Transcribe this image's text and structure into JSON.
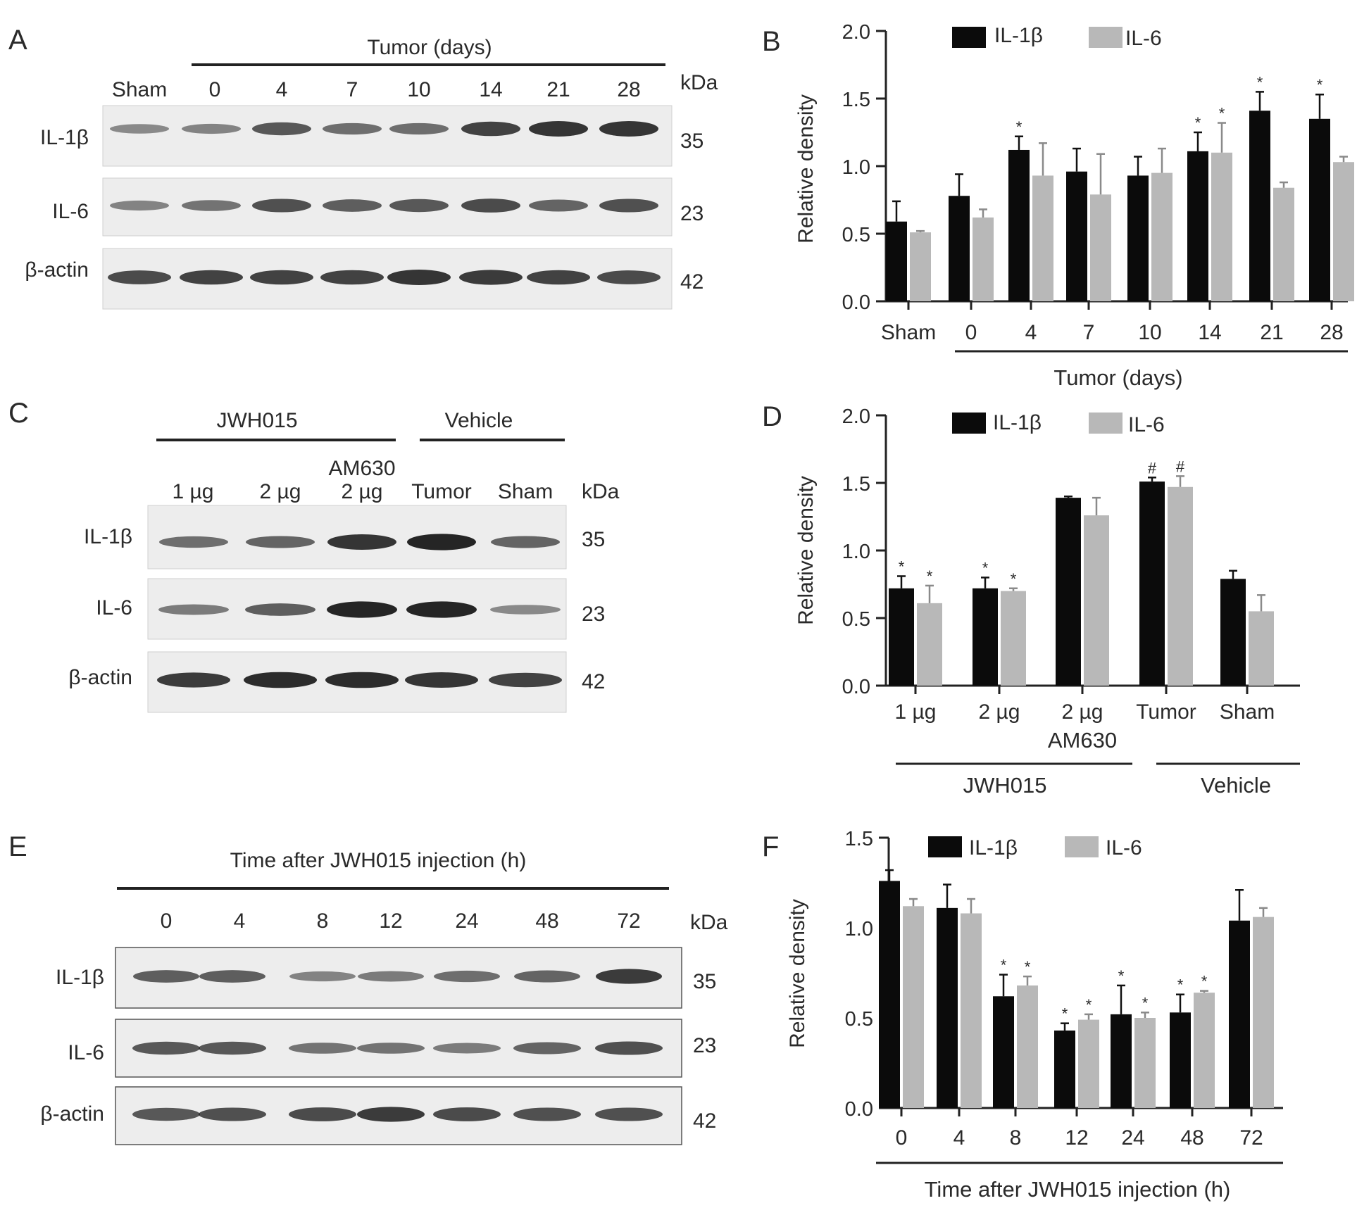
{
  "panel_letters": [
    "A",
    "B",
    "C",
    "D",
    "E",
    "F"
  ],
  "colors": {
    "il1b": "#0b0b0b",
    "il6": "#b8b8b8",
    "blot_bg": "#ededed",
    "band": "#141414"
  },
  "blots": {
    "A": {
      "header": "Tumor (days)",
      "lanes": [
        "Sham",
        "0",
        "4",
        "7",
        "10",
        "14",
        "21",
        "28"
      ],
      "kda_label": "kDa",
      "rows": [
        {
          "protein": "IL-1β",
          "kda": "35"
        },
        {
          "protein": "IL-6",
          "kda": "23"
        },
        {
          "protein": "β-actin",
          "kda": "42"
        }
      ]
    },
    "C": {
      "groups": [
        "JWH015",
        "Vehicle"
      ],
      "lane_top_extra": "AM630",
      "lanes": [
        "1 µg",
        "2 µg",
        "2 µg",
        "Tumor",
        "Sham"
      ],
      "kda_label": "kDa",
      "rows": [
        {
          "protein": "IL-1β",
          "kda": "35"
        },
        {
          "protein": "IL-6",
          "kda": "23"
        },
        {
          "protein": "β-actin",
          "kda": "42"
        }
      ]
    },
    "E": {
      "header": "Time after JWH015 injection (h)",
      "lanes": [
        "0",
        "4",
        "8",
        "12",
        "24",
        "48",
        "72"
      ],
      "kda_label": "kDa",
      "rows": [
        {
          "protein": "IL-1β",
          "kda": "35"
        },
        {
          "protein": "IL-6",
          "kda": "23"
        },
        {
          "protein": "β-actin",
          "kda": "42"
        }
      ]
    }
  },
  "chart_data": [
    {
      "panel": "B",
      "type": "bar",
      "ylabel": "Relative density",
      "ylim": [
        0,
        2.0
      ],
      "yticks": [
        "0.0",
        "0.5",
        "1.0",
        "1.5",
        "2.0"
      ],
      "categories": [
        "Sham",
        "0",
        "4",
        "7",
        "10",
        "14",
        "21",
        "28"
      ],
      "group_label": "Tumor (days)",
      "legend": "top",
      "series": [
        {
          "name": "IL-1β",
          "values": [
            0.59,
            0.78,
            1.12,
            0.96,
            0.93,
            1.11,
            1.41,
            1.35
          ],
          "errors": [
            0.15,
            0.16,
            0.1,
            0.17,
            0.14,
            0.14,
            0.14,
            0.18
          ],
          "marks": [
            "",
            "",
            "*",
            "",
            "",
            "*",
            "*",
            "*"
          ]
        },
        {
          "name": "IL-6",
          "values": [
            0.51,
            0.62,
            0.93,
            0.79,
            0.95,
            1.1,
            0.84,
            1.03
          ],
          "errors": [
            0.01,
            0.06,
            0.24,
            0.3,
            0.18,
            0.22,
            0.04,
            0.04
          ],
          "marks": [
            "",
            "",
            "",
            "",
            "",
            "*",
            "",
            ""
          ]
        }
      ]
    },
    {
      "panel": "D",
      "type": "bar",
      "ylabel": "Relative density",
      "ylim": [
        0,
        2.0
      ],
      "yticks": [
        "0.0",
        "0.5",
        "1.0",
        "1.5",
        "2.0"
      ],
      "categories": [
        "1 µg",
        "2 µg",
        "2 µg",
        "Tumor",
        "Sham"
      ],
      "category_sublabel": "AM630",
      "groups": [
        "JWH015",
        "Vehicle"
      ],
      "legend": "top",
      "series": [
        {
          "name": "IL-1β",
          "values": [
            0.72,
            0.72,
            1.39,
            1.51,
            0.79
          ],
          "errors": [
            0.09,
            0.08,
            0.01,
            0.03,
            0.06
          ],
          "marks": [
            "*",
            "*",
            "",
            "#",
            ""
          ]
        },
        {
          "name": "IL-6",
          "values": [
            0.61,
            0.7,
            1.26,
            1.47,
            0.55
          ],
          "errors": [
            0.13,
            0.02,
            0.13,
            0.08,
            0.12
          ],
          "marks": [
            "*",
            "*",
            "",
            "#",
            ""
          ]
        }
      ]
    },
    {
      "panel": "F",
      "type": "bar",
      "ylabel": "Relative density",
      "ylim": [
        0,
        1.5
      ],
      "yticks": [
        "0.0",
        "0.5",
        "1.0",
        "1.5"
      ],
      "categories": [
        "0",
        "4",
        "8",
        "12",
        "24",
        "48",
        "72"
      ],
      "xlabel": "Time after JWH015 injection (h)",
      "legend": "top",
      "series": [
        {
          "name": "IL-1β",
          "values": [
            1.26,
            1.11,
            0.62,
            0.43,
            0.52,
            0.53,
            1.04
          ],
          "errors": [
            0.06,
            0.13,
            0.12,
            0.04,
            0.16,
            0.1,
            0.17
          ],
          "marks": [
            "",
            "",
            "*",
            "*",
            "*",
            "*",
            ""
          ]
        },
        {
          "name": "IL-6",
          "values": [
            1.12,
            1.08,
            0.68,
            0.49,
            0.5,
            0.64,
            1.06
          ],
          "errors": [
            0.04,
            0.08,
            0.05,
            0.03,
            0.03,
            0.01,
            0.05
          ],
          "marks": [
            "",
            "",
            "*",
            "*",
            "*",
            "*",
            ""
          ]
        }
      ]
    }
  ]
}
